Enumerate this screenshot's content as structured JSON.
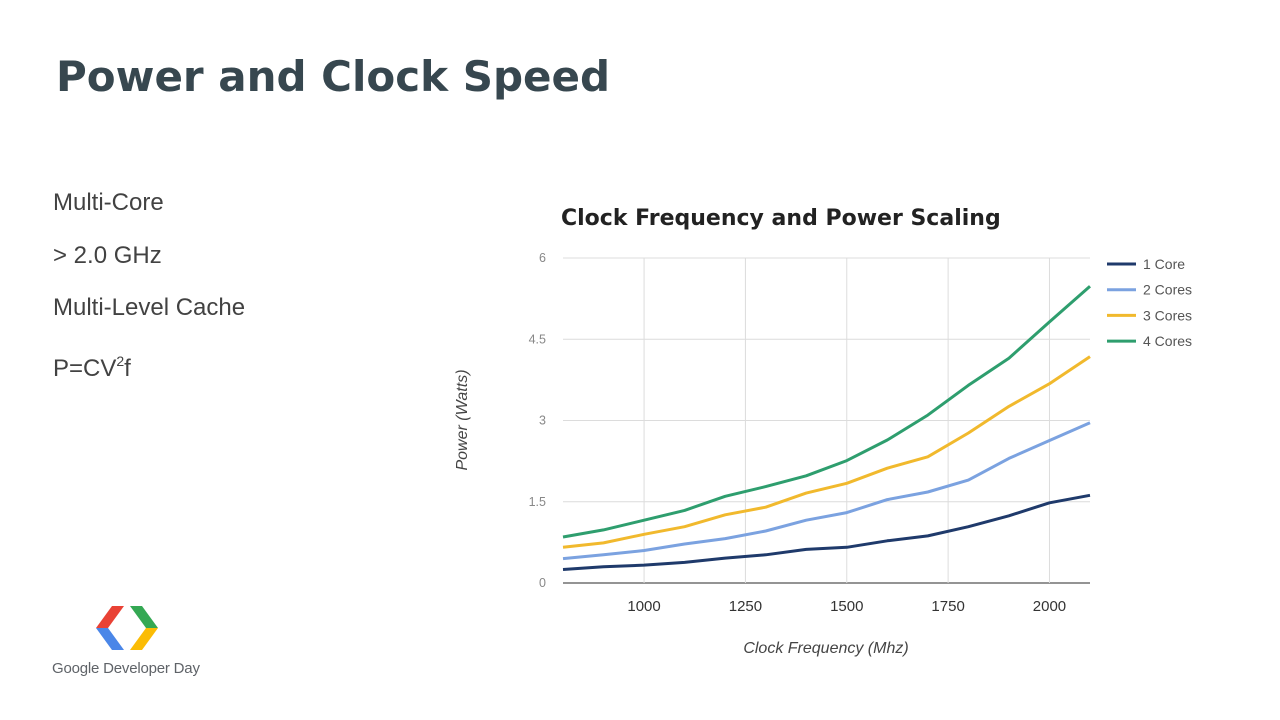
{
  "slide": {
    "title": "Power and Clock Speed",
    "bullets": [
      "Multi-Core",
      "> 2.0 GHz",
      "Multi-Level Cache"
    ],
    "formula": {
      "prefix": "P=CV",
      "superscript": "2",
      "suffix": "f"
    }
  },
  "logo": {
    "text": "Google Developer Day"
  },
  "chart_data": {
    "type": "line",
    "title": "Clock Frequency and Power Scaling",
    "xlabel": "Clock Frequency (Mhz)",
    "ylabel": "Power (Watts)",
    "xlim": [
      800,
      2100
    ],
    "ylim": [
      0,
      6
    ],
    "xticks": [
      1000,
      1250,
      1500,
      1750,
      2000
    ],
    "yticks": [
      0,
      1.5,
      3,
      4.5,
      6
    ],
    "ytick_labels": [
      "0",
      "1.5",
      "3",
      "4.5",
      "6"
    ],
    "xtick_labels": [
      "1000",
      "1250",
      "1500",
      "1750",
      "2000"
    ],
    "grid": true,
    "legend_position": "right",
    "x": [
      800,
      900,
      1000,
      1100,
      1200,
      1300,
      1400,
      1500,
      1600,
      1700,
      1800,
      1900,
      2000,
      2100
    ],
    "series": [
      {
        "name": "1 Core",
        "color": "#1f3a6b",
        "values": [
          0.25,
          0.3,
          0.33,
          0.38,
          0.46,
          0.52,
          0.62,
          0.66,
          0.78,
          0.87,
          1.04,
          1.24,
          1.48,
          1.62
        ]
      },
      {
        "name": "2 Cores",
        "color": "#7ba2e0",
        "values": [
          0.45,
          0.52,
          0.6,
          0.72,
          0.82,
          0.96,
          1.16,
          1.3,
          1.54,
          1.68,
          1.9,
          2.3,
          2.63,
          2.96
        ]
      },
      {
        "name": "3 Cores",
        "color": "#f1b92d",
        "values": [
          0.66,
          0.74,
          0.9,
          1.04,
          1.26,
          1.4,
          1.66,
          1.84,
          2.12,
          2.33,
          2.77,
          3.26,
          3.68,
          4.18
        ]
      },
      {
        "name": "4 Cores",
        "color": "#2e9e6e",
        "values": [
          0.85,
          0.98,
          1.16,
          1.34,
          1.6,
          1.78,
          1.98,
          2.26,
          2.64,
          3.1,
          3.65,
          4.15,
          4.82,
          5.48
        ]
      }
    ]
  }
}
